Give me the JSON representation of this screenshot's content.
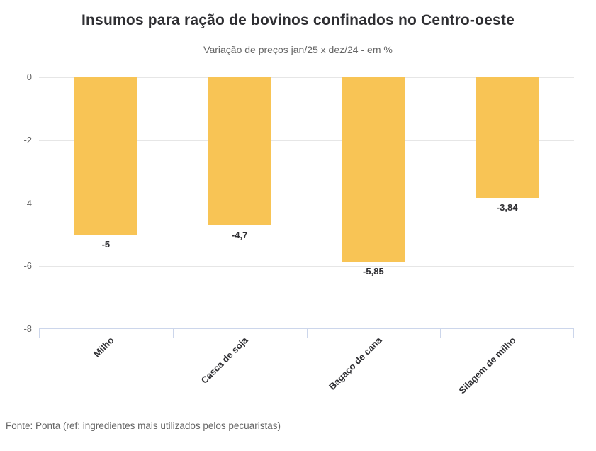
{
  "footer": {
    "source": "Fonte: Ponta (ref: ingredientes mais utilizados pelos pecuaristas)"
  },
  "chart_data": {
    "type": "bar",
    "orientation": "vertical",
    "title": "Insumos para ração de bovinos confinados no Centro-oeste",
    "subtitle": "Variação de preços jan/25 x dez/24 - em %",
    "categories": [
      "Milho",
      "Casca de soja",
      "Bagaço de cana",
      "Silagem de milho"
    ],
    "values": [
      -5,
      -4.7,
      -5.85,
      -3.84
    ],
    "value_labels": [
      "-5",
      "-4,7",
      "-5,85",
      "-3,84"
    ],
    "ylim": [
      -8,
      0
    ],
    "yticks": [
      0,
      -2,
      -4,
      -6,
      -8
    ],
    "ytick_labels": [
      "0",
      "-2",
      "-4",
      "-6",
      "-8"
    ],
    "grid": true,
    "legend": false,
    "colors": {
      "bar": "#F8C455",
      "grid_line": "#E6E6E6",
      "axis_line": "#CCD6EB",
      "axis_label": "#666666",
      "data_label": "#2F2F33",
      "title": "#2F2F33",
      "subtitle": "#666666",
      "source": "#666666"
    }
  }
}
